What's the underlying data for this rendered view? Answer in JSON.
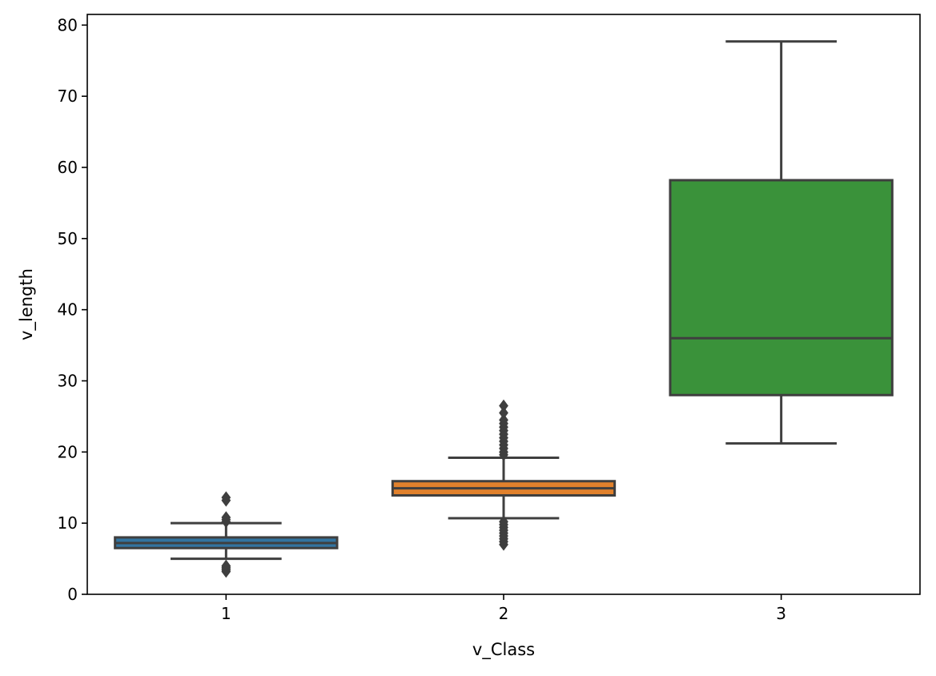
{
  "chart_data": {
    "type": "boxplot",
    "title": "",
    "xlabel": "v_Class",
    "ylabel": "v_length",
    "categories": [
      "1",
      "2",
      "3"
    ],
    "ylim": [
      0,
      81.5
    ],
    "yticks": [
      0,
      10,
      20,
      30,
      40,
      50,
      60,
      70,
      80
    ],
    "grid": false,
    "legend": "none",
    "box_edge_color": "#3f3f3f",
    "boxes": [
      {
        "category": "1",
        "color": "#3274a1",
        "whisker_low": 5.0,
        "q1": 6.5,
        "median": 7.2,
        "q3": 8.0,
        "whisker_high": 10.0,
        "outliers": [
          3.2,
          3.4,
          3.6,
          3.8,
          4.0,
          10.2,
          10.5,
          10.8,
          13.2,
          13.6
        ]
      },
      {
        "category": "2",
        "color": "#e1812c",
        "whisker_low": 10.7,
        "q1": 13.9,
        "median": 14.9,
        "q3": 15.9,
        "whisker_high": 19.2,
        "outliers": [
          7.0,
          7.4,
          7.8,
          8.2,
          8.6,
          9.0,
          9.4,
          9.8,
          10.2,
          19.6,
          20.0,
          20.5,
          21.0,
          21.5,
          22.0,
          22.5,
          23.0,
          23.5,
          24.0,
          24.5,
          25.5,
          26.5
        ]
      },
      {
        "category": "3",
        "color": "#3a923a",
        "whisker_low": 21.2,
        "q1": 28.0,
        "median": 36.0,
        "q3": 58.2,
        "whisker_high": 77.7,
        "outliers": []
      }
    ]
  }
}
